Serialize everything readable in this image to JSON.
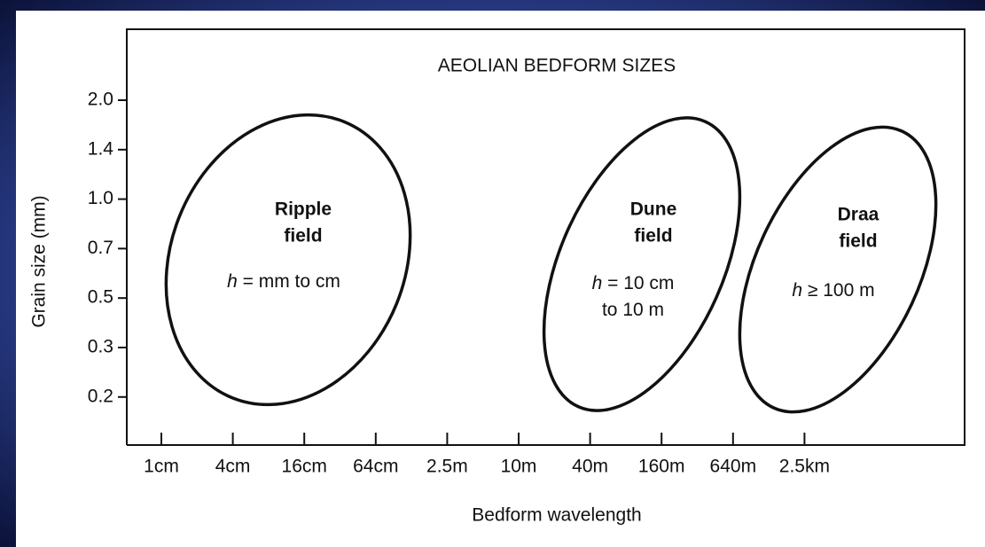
{
  "title": "AEOLIAN BEDFORM SIZES",
  "y_axis": {
    "label": "Grain size (mm)",
    "ticks": [
      "2.0",
      "1.4",
      "1.0",
      "0.7",
      "0.5",
      "0.3",
      "0.2"
    ]
  },
  "x_axis": {
    "label": "Bedform wavelength",
    "ticks": [
      "1cm",
      "4cm",
      "16cm",
      "64cm",
      "2.5m",
      "10m",
      "40m",
      "160m",
      "640m",
      "2.5km"
    ]
  },
  "regions": [
    {
      "name": [
        "Ripple",
        "field"
      ],
      "height": [
        {
          "var": "h",
          "rest": " = mm to cm"
        }
      ]
    },
    {
      "name": [
        "Dune",
        "field"
      ],
      "height": [
        {
          "var": "h",
          "rest": " = 10 cm"
        },
        {
          "var": "",
          "rest": "to 10 m"
        }
      ]
    },
    {
      "name": [
        "Draa",
        "field"
      ],
      "height": [
        {
          "var": "h",
          "rest": " ≥ 100 m"
        }
      ]
    }
  ]
}
